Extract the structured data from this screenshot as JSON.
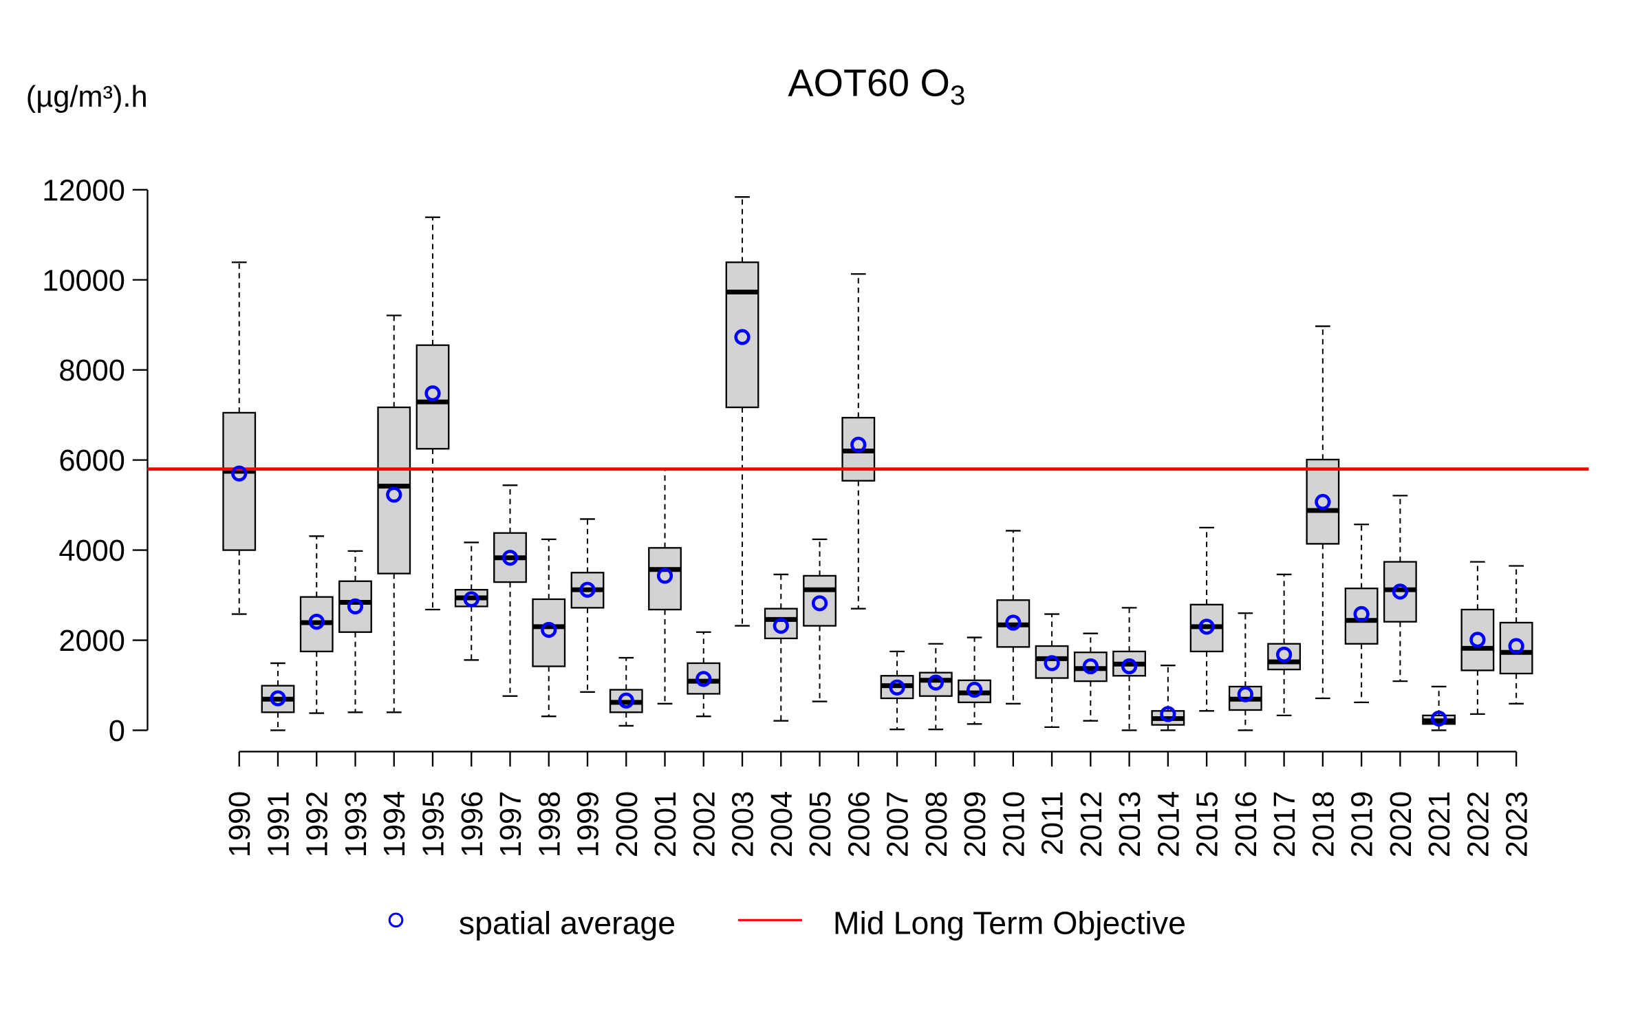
{
  "chart_data": {
    "type": "boxplot",
    "title": {
      "main": "AOT60 O",
      "subscript": "3"
    },
    "ylabel": "(µg/m³).h",
    "xlabel": "",
    "ylim": [
      0,
      12000
    ],
    "yticks": [
      0,
      2000,
      4000,
      6000,
      8000,
      10000,
      12000
    ],
    "grid": false,
    "legend_position": "bottom",
    "colors": {
      "box_fill": "#d3d3d3",
      "mean_marker": "#0000ff",
      "reference_line": "#ff0000",
      "median": "#000000"
    },
    "reference_line": {
      "name": "Mid Long Term Objective",
      "value": 5800
    },
    "mean_series_name": "spatial average",
    "categories": [
      "1990",
      "1991",
      "1992",
      "1993",
      "1994",
      "1995",
      "1996",
      "1997",
      "1998",
      "1999",
      "2000",
      "2001",
      "2002",
      "2003",
      "2004",
      "2005",
      "2006",
      "2007",
      "2008",
      "2009",
      "2010",
      "2011",
      "2012",
      "2013",
      "2014",
      "2015",
      "2016",
      "2017",
      "2018",
      "2019",
      "2020",
      "2021",
      "2022",
      "2023"
    ],
    "boxes": [
      {
        "low": 2580,
        "q1": 4000,
        "median": 5750,
        "q3": 7050,
        "high": 10390,
        "mean": 5700
      },
      {
        "low": 0,
        "q1": 400,
        "median": 690,
        "q3": 990,
        "high": 1490,
        "mean": 710
      },
      {
        "low": 380,
        "q1": 1750,
        "median": 2390,
        "q3": 2960,
        "high": 4310,
        "mean": 2410
      },
      {
        "low": 400,
        "q1": 2180,
        "median": 2840,
        "q3": 3310,
        "high": 3980,
        "mean": 2750
      },
      {
        "low": 400,
        "q1": 3480,
        "median": 5420,
        "q3": 7170,
        "high": 9210,
        "mean": 5230
      },
      {
        "low": 2680,
        "q1": 6250,
        "median": 7290,
        "q3": 8550,
        "high": 11390,
        "mean": 7480
      },
      {
        "low": 1560,
        "q1": 2750,
        "median": 2940,
        "q3": 3120,
        "high": 4170,
        "mean": 2910
      },
      {
        "low": 760,
        "q1": 3290,
        "median": 3830,
        "q3": 4380,
        "high": 5440,
        "mean": 3830
      },
      {
        "low": 310,
        "q1": 1420,
        "median": 2300,
        "q3": 2910,
        "high": 4240,
        "mean": 2230
      },
      {
        "low": 850,
        "q1": 2720,
        "median": 3120,
        "q3": 3500,
        "high": 4690,
        "mean": 3120
      },
      {
        "low": 100,
        "q1": 400,
        "median": 620,
        "q3": 900,
        "high": 1610,
        "mean": 660
      },
      {
        "low": 590,
        "q1": 2680,
        "median": 3570,
        "q3": 4050,
        "high": 5800,
        "mean": 3430
      },
      {
        "low": 310,
        "q1": 810,
        "median": 1090,
        "q3": 1490,
        "high": 2180,
        "mean": 1140
      },
      {
        "low": 2320,
        "q1": 7170,
        "median": 9730,
        "q3": 10390,
        "high": 11840,
        "mean": 8730
      },
      {
        "low": 210,
        "q1": 2040,
        "median": 2460,
        "q3": 2700,
        "high": 3460,
        "mean": 2320
      },
      {
        "low": 640,
        "q1": 2320,
        "median": 3120,
        "q3": 3430,
        "high": 4240,
        "mean": 2820
      },
      {
        "low": 2700,
        "q1": 5540,
        "median": 6200,
        "q3": 6940,
        "high": 10130,
        "mean": 6340
      },
      {
        "low": 20,
        "q1": 710,
        "median": 990,
        "q3": 1210,
        "high": 1750,
        "mean": 950
      },
      {
        "low": 20,
        "q1": 760,
        "median": 1110,
        "q3": 1280,
        "high": 1920,
        "mean": 1060
      },
      {
        "low": 140,
        "q1": 620,
        "median": 830,
        "q3": 1110,
        "high": 2060,
        "mean": 900
      },
      {
        "low": 590,
        "q1": 1850,
        "median": 2340,
        "q3": 2890,
        "high": 4430,
        "mean": 2390
      },
      {
        "low": 70,
        "q1": 1160,
        "median": 1590,
        "q3": 1870,
        "high": 2580,
        "mean": 1490
      },
      {
        "low": 210,
        "q1": 1090,
        "median": 1370,
        "q3": 1730,
        "high": 2150,
        "mean": 1420
      },
      {
        "low": 0,
        "q1": 1210,
        "median": 1470,
        "q3": 1750,
        "high": 2720,
        "mean": 1420
      },
      {
        "low": 0,
        "q1": 120,
        "median": 260,
        "q3": 430,
        "high": 1440,
        "mean": 360
      },
      {
        "low": 430,
        "q1": 1750,
        "median": 2300,
        "q3": 2790,
        "high": 4500,
        "mean": 2300
      },
      {
        "low": 0,
        "q1": 450,
        "median": 690,
        "q3": 970,
        "high": 2600,
        "mean": 800
      },
      {
        "low": 330,
        "q1": 1350,
        "median": 1520,
        "q3": 1920,
        "high": 3460,
        "mean": 1680
      },
      {
        "low": 710,
        "q1": 4140,
        "median": 4880,
        "q3": 6010,
        "high": 8970,
        "mean": 5070
      },
      {
        "low": 620,
        "q1": 1920,
        "median": 2440,
        "q3": 3150,
        "high": 4570,
        "mean": 2580
      },
      {
        "low": 1090,
        "q1": 2410,
        "median": 3120,
        "q3": 3740,
        "high": 5210,
        "mean": 3080
      },
      {
        "low": 0,
        "q1": 140,
        "median": 210,
        "q3": 330,
        "high": 970,
        "mean": 260
      },
      {
        "low": 360,
        "q1": 1330,
        "median": 1820,
        "q3": 2680,
        "high": 3740,
        "mean": 2010
      },
      {
        "low": 590,
        "q1": 1260,
        "median": 1730,
        "q3": 2390,
        "high": 3650,
        "mean": 1870
      }
    ]
  }
}
